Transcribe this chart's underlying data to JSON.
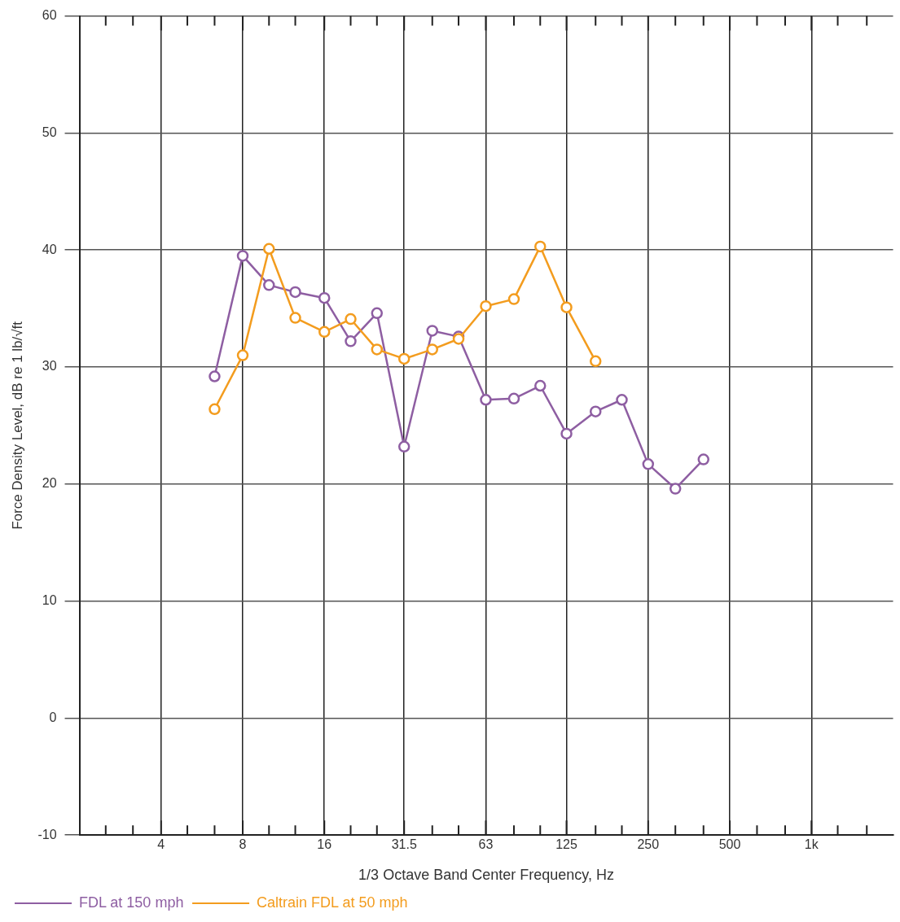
{
  "chart_data": {
    "type": "line",
    "xlabel": "1/3 Octave Band Center Frequency, Hz",
    "ylabel": "Force Density Level, dB re 1 lb/√ft",
    "log": "x",
    "xlim": [
      2,
      2000
    ],
    "xticks": [
      {
        "value": 2.5,
        "label": null
      },
      {
        "value": 3.15,
        "label": null
      },
      4,
      {
        "value": 5,
        "label": null
      },
      {
        "value": 6.3,
        "label": null
      },
      8,
      {
        "value": 10,
        "label": null
      },
      {
        "value": 12.5,
        "label": null
      },
      16,
      {
        "value": 20,
        "label": null
      },
      {
        "value": 25,
        "label": null
      },
      31.5,
      {
        "value": 40,
        "label": null
      },
      {
        "value": 50,
        "label": null
      },
      63,
      {
        "value": 80,
        "label": null
      },
      {
        "value": 100,
        "label": null
      },
      125,
      {
        "value": 160,
        "label": null
      },
      {
        "value": 200,
        "label": null
      },
      250,
      {
        "value": 315,
        "label": null
      },
      {
        "value": 400,
        "label": null
      },
      500,
      {
        "value": 630,
        "label": null
      },
      {
        "value": 800,
        "label": null
      },
      {
        "value": 1000,
        "label": "1k"
      },
      {
        "value": 1250,
        "label": null
      },
      {
        "value": 1600,
        "label": null
      }
    ],
    "ylim": [
      -10,
      60
    ],
    "yticks": [
      -10,
      0,
      10,
      20,
      30,
      40,
      50,
      60
    ],
    "grid": true,
    "legend": "bottom left",
    "marker": "circle",
    "line_style": "solid",
    "series": [
      {
        "name": "FDL at 150 mph",
        "color": "#8e5ea2",
        "x": [
          6.3,
          8,
          10,
          12.5,
          16,
          20,
          25,
          31.5,
          40,
          50,
          63,
          80,
          100,
          125,
          160,
          200,
          250,
          315,
          400
        ],
        "values": [
          29.2,
          39.5,
          37.0,
          36.4,
          35.9,
          32.2,
          34.6,
          23.2,
          33.1,
          32.6,
          27.2,
          27.3,
          28.4,
          24.3,
          26.2,
          27.2,
          21.7,
          19.6,
          22.1
        ]
      },
      {
        "name": "Caltrain FDL at 50 mph",
        "color": "#f39c1e",
        "x": [
          6.3,
          8,
          10,
          12.5,
          16,
          20,
          25,
          31.5,
          40,
          50,
          63,
          80,
          100,
          125,
          160
        ],
        "values": [
          26.4,
          31.0,
          40.1,
          34.2,
          33.0,
          34.1,
          31.5,
          30.7,
          31.5,
          32.4,
          35.2,
          35.8,
          40.3,
          35.1,
          30.5
        ]
      }
    ]
  }
}
